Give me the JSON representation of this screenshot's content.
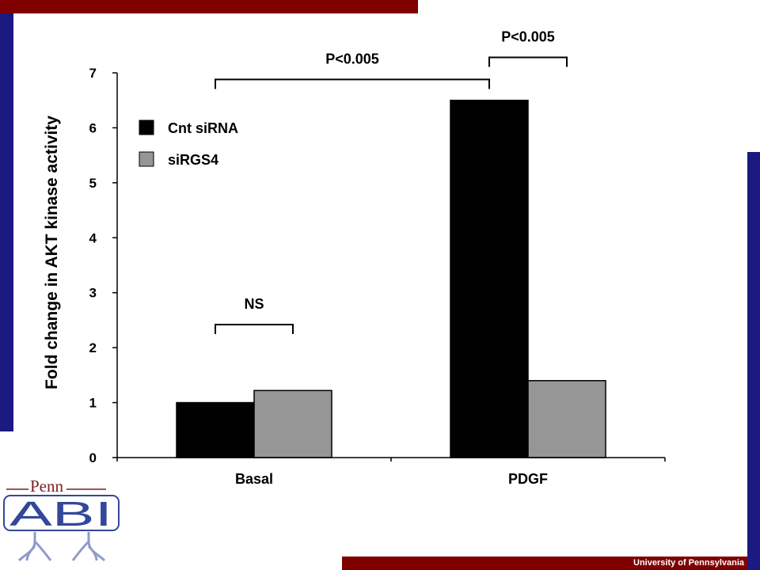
{
  "colors": {
    "frame_red": "#800000",
    "frame_blue": "#1a1a80",
    "cnt_sirna": "#000000",
    "sirgs4": "#969696",
    "logo_blue": "#33479a",
    "logo_red": "#7a1f1f"
  },
  "footer": {
    "text": "University of Pennsylvania"
  },
  "logo": {
    "penn": "Penn",
    "abi": "ABI"
  },
  "chart_data": {
    "type": "bar",
    "categories": [
      "Basal",
      "PDGF"
    ],
    "series": [
      {
        "name": "Cnt siRNA",
        "color": "#000000",
        "values": [
          1.0,
          6.5
        ]
      },
      {
        "name": "siRGS4",
        "color": "#969696",
        "values": [
          1.22,
          1.4
        ]
      }
    ],
    "ylabel": "Fold change in AKT kinase activity",
    "xlabel": "",
    "ylim": [
      0,
      7
    ],
    "yticks": [
      0,
      1,
      2,
      3,
      4,
      5,
      6,
      7
    ],
    "legend_position": "top-left",
    "grid": false,
    "annotations": [
      {
        "text": "NS",
        "from_category": 0,
        "from_series": 0,
        "to_category": 0,
        "to_series": 1,
        "level": 2.42
      },
      {
        "text": "P<0.005",
        "from_category": 0,
        "from_series": 0,
        "to_category": 1,
        "to_series": 0,
        "level": 6.88
      },
      {
        "text": "P<0.005",
        "from_category": 1,
        "from_series": 0,
        "to_category": 1,
        "to_series": 1,
        "level": 7.28
      }
    ]
  }
}
